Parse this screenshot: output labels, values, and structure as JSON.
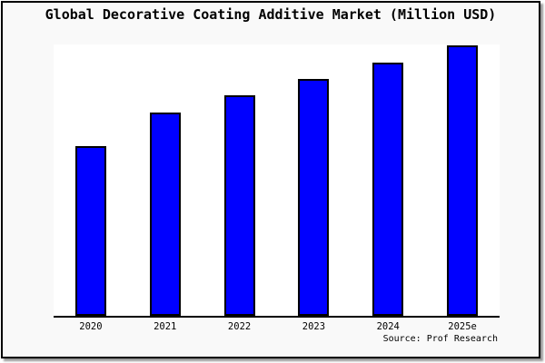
{
  "chart_data": {
    "type": "bar",
    "title": "Global Decorative Coating Additive Market (Million USD)",
    "categories": [
      "2020",
      "2021",
      "2022",
      "2023",
      "2024",
      "2025e"
    ],
    "values": [
      62.7,
      74.8,
      81.2,
      87.3,
      93.3,
      99.6
    ],
    "value_units": "relative bar height, percent of plot height (chart shows no y-axis scale)",
    "xlabel": "",
    "ylabel": "",
    "ylim": [
      0,
      100
    ],
    "grid": false,
    "legend": false,
    "source_note": "Source: Prof Research",
    "colors": {
      "bar_fill": "#0000ff",
      "bar_border": "#000000",
      "axis": "#000000",
      "plot_background": "#ffffff",
      "card_background": "#f9f9f9",
      "text": "#000000"
    }
  }
}
